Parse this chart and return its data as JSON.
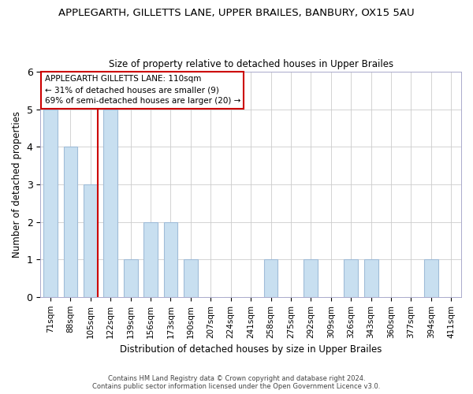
{
  "title": "APPLEGARTH, GILLETTS LANE, UPPER BRAILES, BANBURY, OX15 5AU",
  "subtitle": "Size of property relative to detached houses in Upper Brailes",
  "xlabel": "Distribution of detached houses by size in Upper Brailes",
  "ylabel": "Number of detached properties",
  "categories": [
    "71sqm",
    "88sqm",
    "105sqm",
    "122sqm",
    "139sqm",
    "156sqm",
    "173sqm",
    "190sqm",
    "207sqm",
    "224sqm",
    "241sqm",
    "258sqm",
    "275sqm",
    "292sqm",
    "309sqm",
    "326sqm",
    "343sqm",
    "360sqm",
    "377sqm",
    "394sqm",
    "411sqm"
  ],
  "values": [
    5,
    4,
    3,
    5,
    1,
    2,
    2,
    1,
    0,
    0,
    0,
    1,
    0,
    1,
    0,
    1,
    1,
    0,
    0,
    1,
    0
  ],
  "bar_color": "#c8dff0",
  "bar_edge_color": "#a0bcd8",
  "marker_index": 2,
  "marker_color": "#cc0000",
  "ylim": [
    0,
    6
  ],
  "yticks": [
    0,
    1,
    2,
    3,
    4,
    5,
    6
  ],
  "annotation_title": "APPLEGARTH GILLETTS LANE: 110sqm",
  "annotation_line1": "← 31% of detached houses are smaller (9)",
  "annotation_line2": "69% of semi-detached houses are larger (20) →",
  "footer_line1": "Contains HM Land Registry data © Crown copyright and database right 2024.",
  "footer_line2": "Contains public sector information licensed under the Open Government Licence v3.0.",
  "background_color": "#ffffff",
  "grid_color": "#cccccc"
}
